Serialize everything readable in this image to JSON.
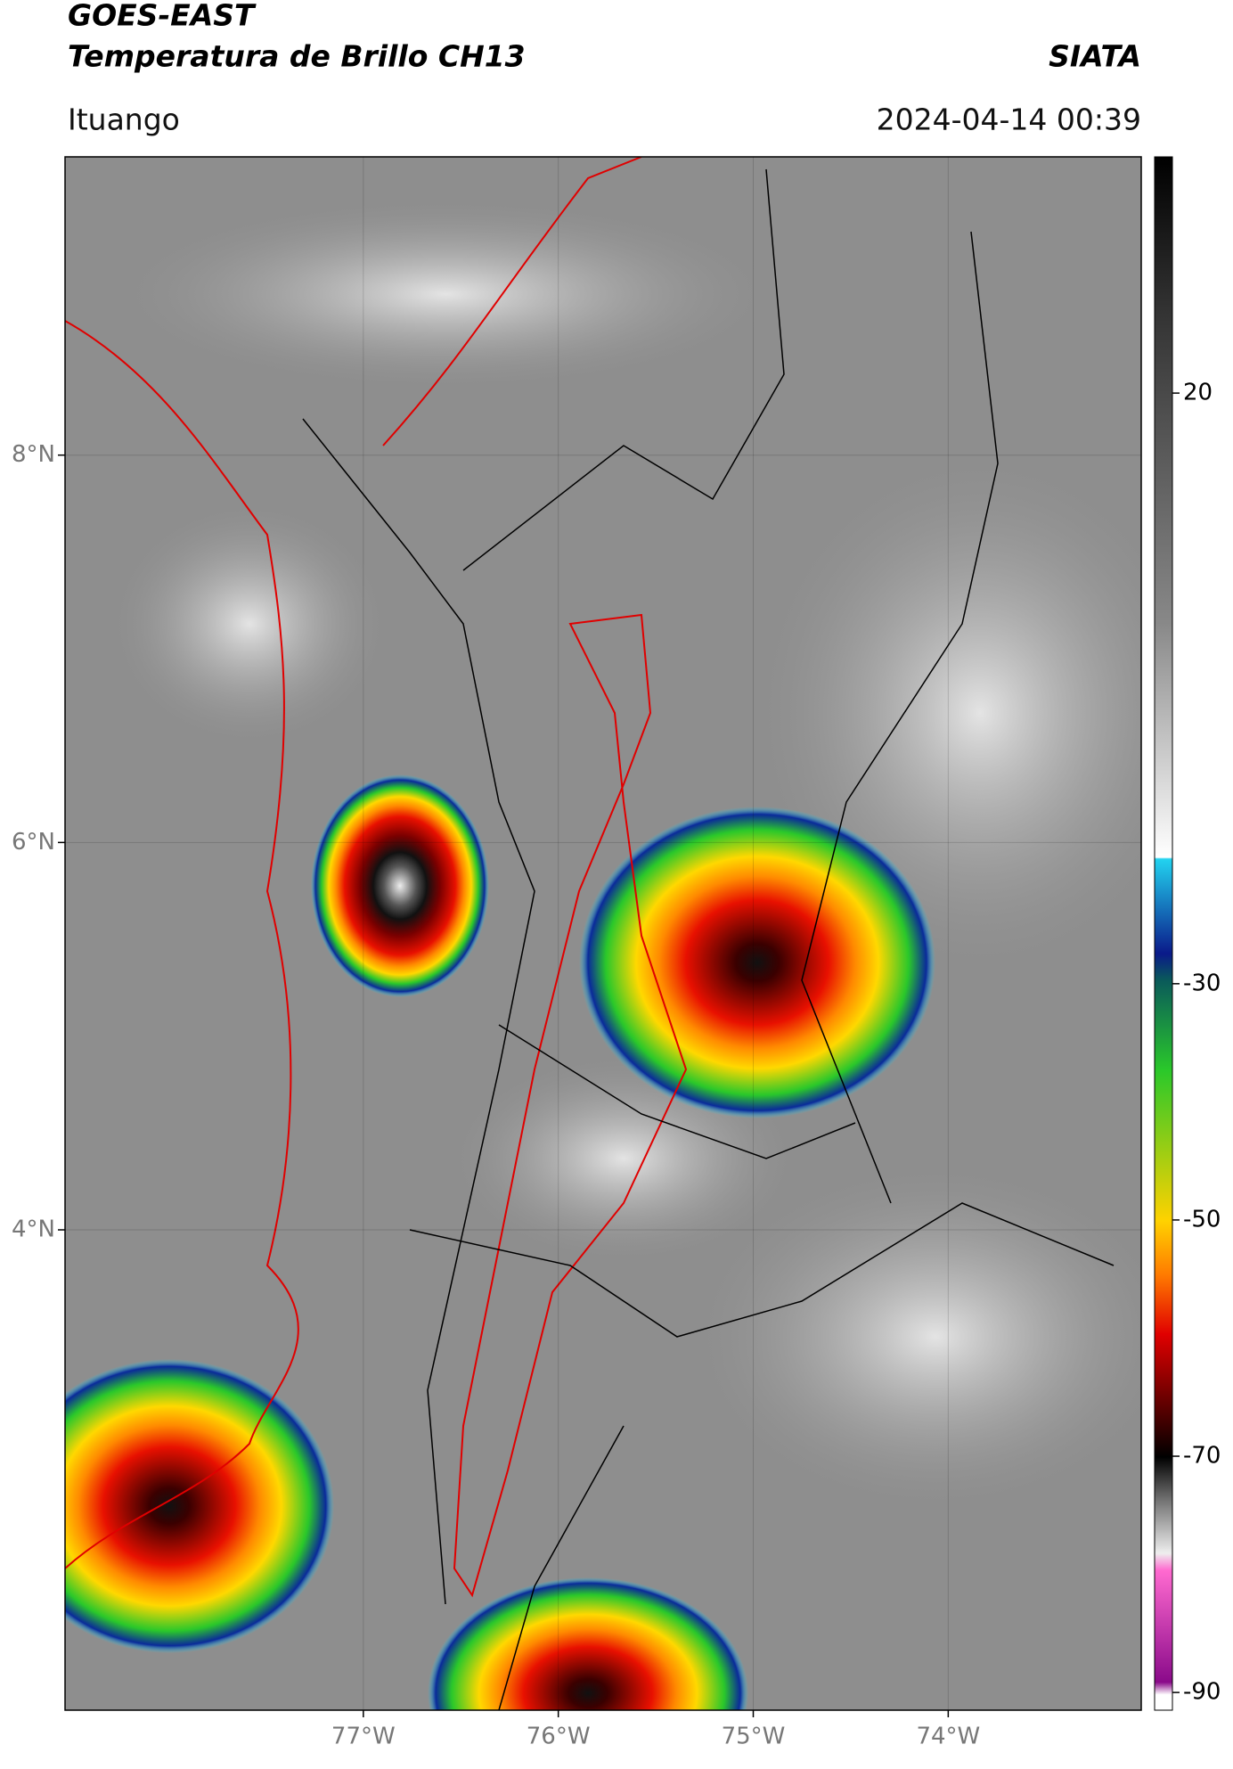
{
  "header": {
    "title": "GOES-EAST",
    "subtitle": "Temperatura de Brillo CH13",
    "source": "SIATA",
    "location": "Ituango",
    "datetime": "2024-04-14 00:39"
  },
  "map": {
    "latlim": [
      1.52,
      9.54
    ],
    "lonlim": [
      -78.53,
      -73.01
    ],
    "lat_ticks": [
      {
        "value": 8,
        "label": "8°N"
      },
      {
        "value": 6,
        "label": "6°N"
      },
      {
        "value": 4,
        "label": "4°N"
      }
    ],
    "lon_ticks": [
      {
        "value": -77,
        "label": "77°W"
      },
      {
        "value": -76,
        "label": "76°W"
      },
      {
        "value": -75,
        "label": "75°W"
      },
      {
        "value": -74,
        "label": "74°W"
      }
    ]
  },
  "colorbar": {
    "lim": [
      -91.5,
      40
    ],
    "ticks": [
      20,
      -30,
      -50,
      -70,
      -90
    ]
  }
}
